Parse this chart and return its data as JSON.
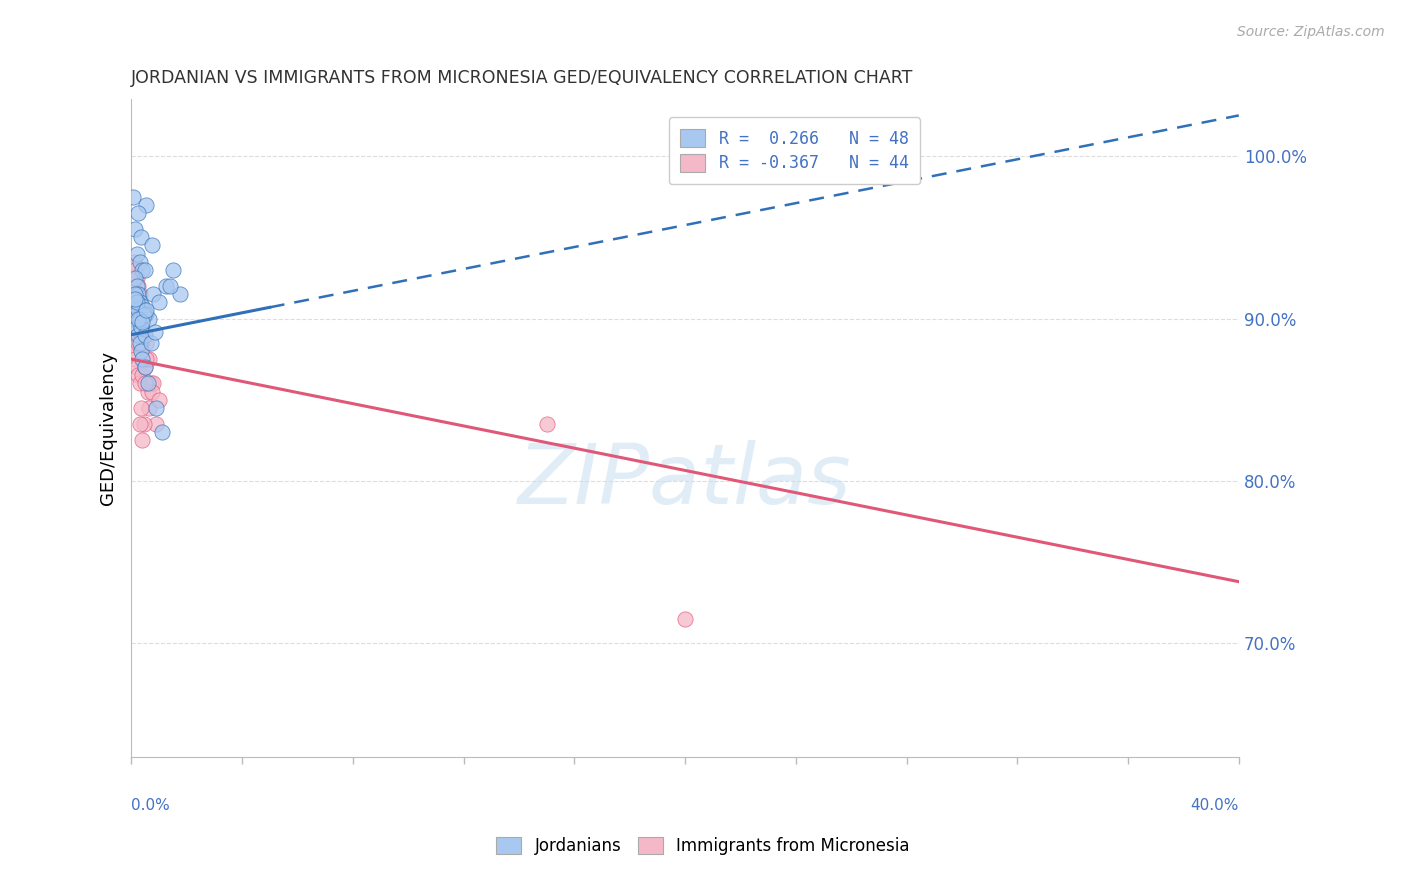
{
  "title": "JORDANIAN VS IMMIGRANTS FROM MICRONESIA GED/EQUIVALENCY CORRELATION CHART",
  "source": "Source: ZipAtlas.com",
  "ylabel": "GED/Equivalency",
  "blue_R": 0.266,
  "blue_N": 48,
  "pink_R": -0.367,
  "pink_N": 44,
  "blue_color": "#A8C8F0",
  "pink_color": "#F5B8C8",
  "blue_line_color": "#3070B8",
  "pink_line_color": "#E05878",
  "legend_label_blue": "Jordanians",
  "legend_label_pink": "Immigrants from Micronesia",
  "xmin": 0.0,
  "xmax": 40.0,
  "ymin": 63.0,
  "ymax": 103.5,
  "blue_scatter_x": [
    0.05,
    0.55,
    0.25,
    0.15,
    0.35,
    0.75,
    0.2,
    0.3,
    0.4,
    0.5,
    0.15,
    0.2,
    0.25,
    0.3,
    0.4,
    0.45,
    0.55,
    0.65,
    0.8,
    1.0,
    1.25,
    1.5,
    0.1,
    0.15,
    0.2,
    0.25,
    0.3,
    0.35,
    0.4,
    0.5,
    0.6,
    0.9,
    1.1,
    0.15,
    0.25,
    0.35,
    0.5,
    0.7,
    1.75,
    0.3,
    0.2,
    0.45,
    0.85,
    1.4,
    0.25,
    0.15,
    0.4,
    0.55
  ],
  "blue_scatter_y": [
    97.5,
    97.0,
    96.5,
    95.5,
    95.0,
    94.5,
    94.0,
    93.5,
    93.0,
    93.0,
    92.5,
    92.0,
    91.5,
    91.0,
    90.8,
    90.5,
    90.3,
    90.0,
    91.5,
    91.0,
    92.0,
    93.0,
    90.5,
    90.0,
    89.5,
    89.0,
    88.5,
    88.0,
    87.5,
    87.0,
    86.0,
    84.5,
    83.0,
    91.5,
    90.5,
    89.5,
    89.0,
    88.5,
    91.5,
    90.0,
    91.0,
    90.2,
    89.2,
    92.0,
    90.0,
    91.2,
    89.8,
    90.5
  ],
  "pink_scatter_x": [
    0.05,
    0.1,
    0.15,
    0.2,
    0.25,
    0.3,
    0.4,
    0.5,
    0.6,
    0.7,
    0.1,
    0.15,
    0.2,
    0.25,
    0.35,
    0.45,
    0.55,
    0.65,
    0.8,
    0.1,
    0.15,
    0.2,
    0.25,
    0.3,
    0.4,
    0.55,
    0.75,
    0.15,
    0.25,
    0.3,
    0.35,
    0.5,
    0.65,
    0.9,
    0.15,
    0.25,
    0.35,
    0.45,
    15.0,
    20.0,
    1.0,
    0.2,
    0.3,
    0.4
  ],
  "pink_scatter_y": [
    88.5,
    88.0,
    87.5,
    87.0,
    86.5,
    86.0,
    86.5,
    87.0,
    85.5,
    86.0,
    91.5,
    91.0,
    90.5,
    90.0,
    89.5,
    89.0,
    88.5,
    87.5,
    86.0,
    93.5,
    93.0,
    92.5,
    92.0,
    91.5,
    89.0,
    87.5,
    85.5,
    90.5,
    89.8,
    89.2,
    88.5,
    86.0,
    84.5,
    83.5,
    90.0,
    88.5,
    84.5,
    83.5,
    83.5,
    71.5,
    85.0,
    91.5,
    83.5,
    82.5
  ],
  "blue_trend_x0": 0.0,
  "blue_trend_y0": 89.0,
  "blue_trend_x1": 40.0,
  "blue_trend_y1": 102.5,
  "blue_solid_x1": 5.0,
  "pink_trend_x0": 0.0,
  "pink_trend_y0": 87.5,
  "pink_trend_x1": 40.0,
  "pink_trend_y1": 73.8,
  "ytick_vals": [
    70,
    80,
    90,
    100
  ],
  "ytick_labels": [
    "70.0%",
    "80.0%",
    "90.0%",
    "100.0%"
  ]
}
